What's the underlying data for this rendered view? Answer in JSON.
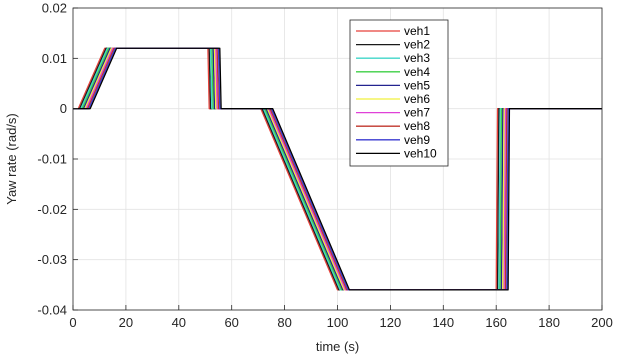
{
  "chart_data": {
    "type": "line",
    "title": "",
    "xlabel": "time (s)",
    "ylabel": "Yaw rate (rad/s)",
    "xlim": [
      0,
      200
    ],
    "ylim": [
      -0.04,
      0.02
    ],
    "xticks": [
      0,
      20,
      40,
      60,
      80,
      100,
      120,
      140,
      160,
      180,
      200
    ],
    "xtick_labels": [
      "0",
      "20",
      "40",
      "60",
      "80",
      "100",
      "120",
      "140",
      "160",
      "180",
      "200"
    ],
    "yticks": [
      0.02,
      0.01,
      0,
      -0.01,
      -0.02,
      -0.03,
      -0.04
    ],
    "ytick_labels": [
      "0.02",
      "0.01",
      "0",
      "-0.01",
      "-0.02",
      "-0.03",
      "-0.04"
    ],
    "grid": true,
    "legend_position": "top-right",
    "series": [
      {
        "name": "veh1",
        "color": "#e8413a",
        "x": [
          0,
          2.0,
          12.0,
          51.0,
          51.5,
          71.0,
          100.0,
          160.0,
          160.5,
          200
        ],
        "y": [
          0,
          0,
          0.012,
          0.012,
          0,
          0,
          -0.036,
          -0.036,
          0,
          0
        ]
      },
      {
        "name": "veh2",
        "color": "#1a1a1a",
        "x": [
          0,
          2.5,
          12.5,
          51.5,
          52.0,
          71.5,
          100.5,
          160.5,
          161.0,
          200
        ],
        "y": [
          0,
          0,
          0.012,
          0.012,
          0,
          0,
          -0.036,
          -0.036,
          0,
          0
        ]
      },
      {
        "name": "veh3",
        "color": "#3fd6c8",
        "x": [
          0,
          3.0,
          13.0,
          52.0,
          52.5,
          72.0,
          101.0,
          161.0,
          161.5,
          200
        ],
        "y": [
          0,
          0,
          0.012,
          0.012,
          0,
          0,
          -0.036,
          -0.036,
          0,
          0
        ]
      },
      {
        "name": "veh4",
        "color": "#3dcf45",
        "x": [
          0,
          3.5,
          13.5,
          52.5,
          53.0,
          72.5,
          101.5,
          161.5,
          162.0,
          200
        ],
        "y": [
          0,
          0,
          0.012,
          0.012,
          0,
          0,
          -0.036,
          -0.036,
          0,
          0
        ]
      },
      {
        "name": "veh5",
        "color": "#23238f",
        "x": [
          0,
          4.0,
          14.0,
          53.0,
          53.5,
          73.0,
          102.0,
          162.0,
          162.5,
          200
        ],
        "y": [
          0,
          0,
          0.012,
          0.012,
          0,
          0,
          -0.036,
          -0.036,
          0,
          0
        ]
      },
      {
        "name": "veh6",
        "color": "#f0f03c",
        "x": [
          0,
          4.5,
          14.5,
          53.5,
          54.0,
          73.5,
          102.5,
          162.5,
          163.0,
          200
        ],
        "y": [
          0,
          0,
          0.012,
          0.012,
          0,
          0,
          -0.036,
          -0.036,
          0,
          0
        ]
      },
      {
        "name": "veh7",
        "color": "#e040d8",
        "x": [
          0,
          5.0,
          15.0,
          54.0,
          54.5,
          74.0,
          103.0,
          163.0,
          163.5,
          200
        ],
        "y": [
          0,
          0,
          0.012,
          0.012,
          0,
          0,
          -0.036,
          -0.036,
          0,
          0
        ]
      },
      {
        "name": "veh8",
        "color": "#c0362c",
        "x": [
          0,
          5.5,
          15.5,
          54.5,
          55.0,
          74.5,
          103.5,
          163.5,
          164.0,
          200
        ],
        "y": [
          0,
          0,
          0.012,
          0.012,
          0,
          0,
          -0.036,
          -0.036,
          0,
          0
        ]
      },
      {
        "name": "veh9",
        "color": "#3a3ad0",
        "x": [
          0,
          6.0,
          16.0,
          55.0,
          55.5,
          75.0,
          104.0,
          164.0,
          164.5,
          200
        ],
        "y": [
          0,
          0,
          0.012,
          0.012,
          0,
          0,
          -0.036,
          -0.036,
          0,
          0
        ]
      },
      {
        "name": "veh10",
        "color": "#000000",
        "x": [
          0,
          6.5,
          16.5,
          55.5,
          56.0,
          75.5,
          104.5,
          164.5,
          165.0,
          200
        ],
        "y": [
          0,
          0,
          0.012,
          0.012,
          0,
          0,
          -0.036,
          -0.036,
          0,
          0
        ]
      }
    ]
  }
}
